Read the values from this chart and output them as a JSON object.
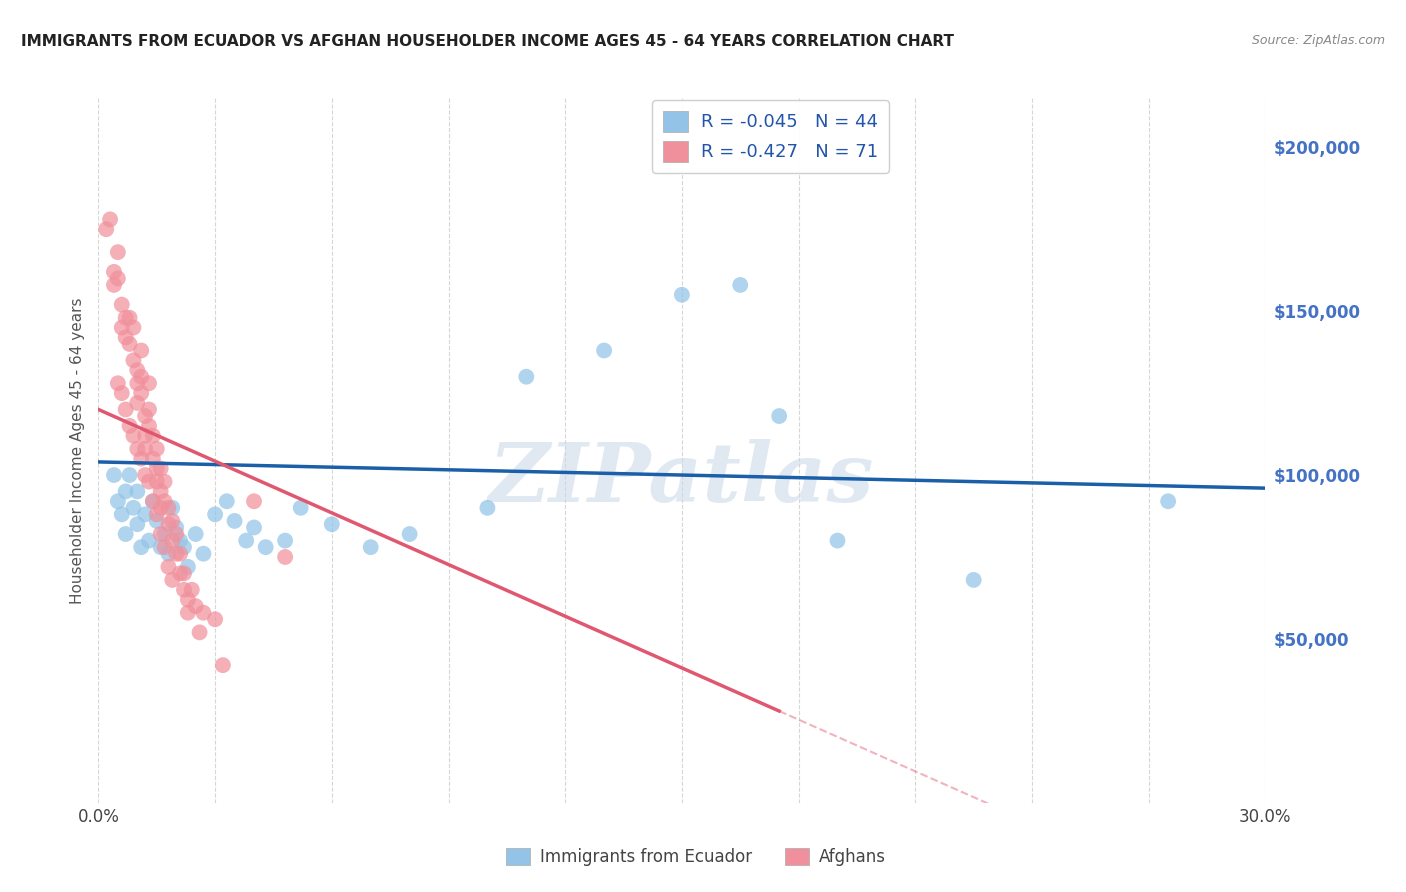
{
  "title": "IMMIGRANTS FROM ECUADOR VS AFGHAN HOUSEHOLDER INCOME AGES 45 - 64 YEARS CORRELATION CHART",
  "source": "Source: ZipAtlas.com",
  "ylabel": "Householder Income Ages 45 - 64 years",
  "xlim": [
    0,
    0.3
  ],
  "ylim": [
    0,
    215000
  ],
  "background_color": "#ffffff",
  "grid_color": "#cccccc",
  "watermark": "ZIPatlas",
  "ecuador_color": "#93c4e8",
  "afghan_color": "#f0909c",
  "ecuador_trend_color": "#1a5fa8",
  "afghan_trend_color": "#e05870",
  "ecuador_R": -0.045,
  "ecuador_N": 44,
  "afghan_R": -0.427,
  "afghan_N": 71,
  "ecuador_points": [
    [
      0.004,
      100000
    ],
    [
      0.005,
      92000
    ],
    [
      0.006,
      88000
    ],
    [
      0.007,
      95000
    ],
    [
      0.007,
      82000
    ],
    [
      0.008,
      100000
    ],
    [
      0.009,
      90000
    ],
    [
      0.01,
      95000
    ],
    [
      0.01,
      85000
    ],
    [
      0.011,
      78000
    ],
    [
      0.012,
      88000
    ],
    [
      0.013,
      80000
    ],
    [
      0.014,
      92000
    ],
    [
      0.015,
      86000
    ],
    [
      0.016,
      78000
    ],
    [
      0.017,
      82000
    ],
    [
      0.018,
      76000
    ],
    [
      0.019,
      90000
    ],
    [
      0.02,
      84000
    ],
    [
      0.021,
      80000
    ],
    [
      0.022,
      78000
    ],
    [
      0.023,
      72000
    ],
    [
      0.025,
      82000
    ],
    [
      0.027,
      76000
    ],
    [
      0.03,
      88000
    ],
    [
      0.033,
      92000
    ],
    [
      0.035,
      86000
    ],
    [
      0.038,
      80000
    ],
    [
      0.04,
      84000
    ],
    [
      0.043,
      78000
    ],
    [
      0.048,
      80000
    ],
    [
      0.052,
      90000
    ],
    [
      0.06,
      85000
    ],
    [
      0.07,
      78000
    ],
    [
      0.08,
      82000
    ],
    [
      0.1,
      90000
    ],
    [
      0.11,
      130000
    ],
    [
      0.13,
      138000
    ],
    [
      0.15,
      155000
    ],
    [
      0.165,
      158000
    ],
    [
      0.175,
      118000
    ],
    [
      0.19,
      80000
    ],
    [
      0.225,
      68000
    ],
    [
      0.275,
      92000
    ]
  ],
  "afghan_points": [
    [
      0.002,
      175000
    ],
    [
      0.003,
      178000
    ],
    [
      0.004,
      162000
    ],
    [
      0.004,
      158000
    ],
    [
      0.005,
      168000
    ],
    [
      0.005,
      160000
    ],
    [
      0.005,
      128000
    ],
    [
      0.006,
      152000
    ],
    [
      0.006,
      145000
    ],
    [
      0.006,
      125000
    ],
    [
      0.007,
      148000
    ],
    [
      0.007,
      142000
    ],
    [
      0.007,
      120000
    ],
    [
      0.008,
      148000
    ],
    [
      0.008,
      140000
    ],
    [
      0.008,
      115000
    ],
    [
      0.009,
      145000
    ],
    [
      0.009,
      135000
    ],
    [
      0.009,
      112000
    ],
    [
      0.01,
      132000
    ],
    [
      0.01,
      128000
    ],
    [
      0.01,
      108000
    ],
    [
      0.01,
      122000
    ],
    [
      0.011,
      138000
    ],
    [
      0.011,
      130000
    ],
    [
      0.011,
      125000
    ],
    [
      0.011,
      105000
    ],
    [
      0.012,
      118000
    ],
    [
      0.012,
      112000
    ],
    [
      0.012,
      108000
    ],
    [
      0.012,
      100000
    ],
    [
      0.013,
      128000
    ],
    [
      0.013,
      120000
    ],
    [
      0.013,
      115000
    ],
    [
      0.013,
      98000
    ],
    [
      0.014,
      112000
    ],
    [
      0.014,
      105000
    ],
    [
      0.014,
      92000
    ],
    [
      0.015,
      108000
    ],
    [
      0.015,
      102000
    ],
    [
      0.015,
      98000
    ],
    [
      0.015,
      88000
    ],
    [
      0.016,
      102000
    ],
    [
      0.016,
      95000
    ],
    [
      0.016,
      90000
    ],
    [
      0.016,
      82000
    ],
    [
      0.017,
      98000
    ],
    [
      0.017,
      92000
    ],
    [
      0.017,
      78000
    ],
    [
      0.018,
      90000
    ],
    [
      0.018,
      85000
    ],
    [
      0.018,
      72000
    ],
    [
      0.019,
      86000
    ],
    [
      0.019,
      80000
    ],
    [
      0.019,
      68000
    ],
    [
      0.02,
      82000
    ],
    [
      0.02,
      76000
    ],
    [
      0.021,
      76000
    ],
    [
      0.021,
      70000
    ],
    [
      0.022,
      70000
    ],
    [
      0.022,
      65000
    ],
    [
      0.023,
      62000
    ],
    [
      0.023,
      58000
    ],
    [
      0.024,
      65000
    ],
    [
      0.025,
      60000
    ],
    [
      0.026,
      52000
    ],
    [
      0.027,
      58000
    ],
    [
      0.03,
      56000
    ],
    [
      0.032,
      42000
    ],
    [
      0.04,
      92000
    ],
    [
      0.048,
      75000
    ]
  ]
}
